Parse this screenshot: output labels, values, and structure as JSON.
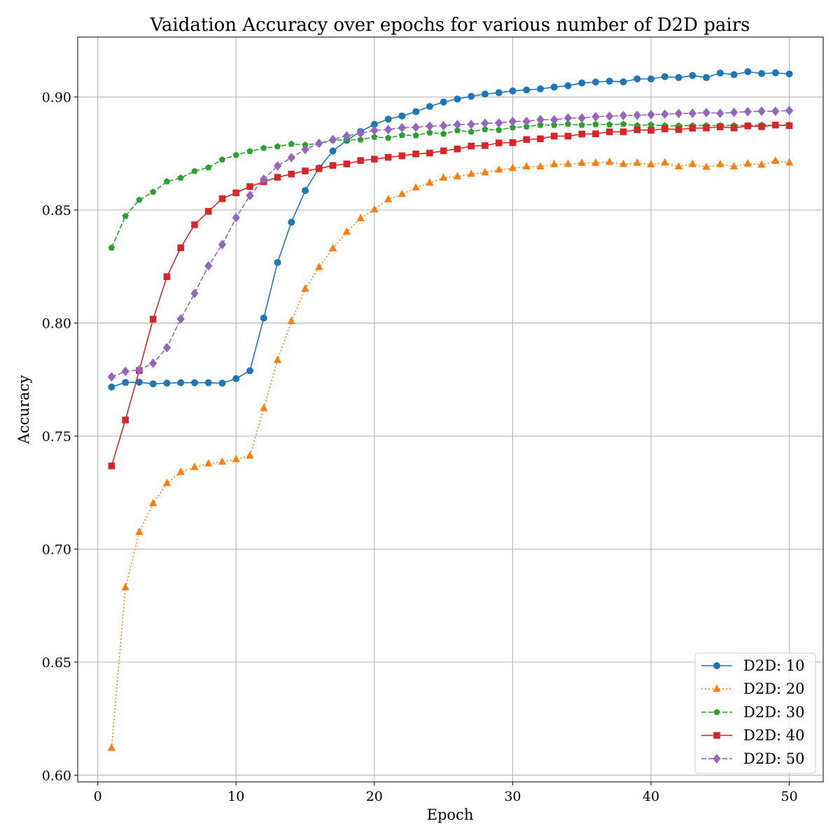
{
  "chart_data": {
    "type": "line",
    "title": "Vaidation Accuracy over epochs for various number of D2D pairs",
    "xlabel": "Epoch",
    "ylabel": "Accuracy",
    "xlim": [
      -1.45,
      52.45
    ],
    "ylim": [
      0.597,
      0.9265
    ],
    "xticks": [
      0,
      10,
      20,
      30,
      40,
      50
    ],
    "xtick_labels": [
      "0",
      "10",
      "20",
      "30",
      "40",
      "50"
    ],
    "yticks": [
      0.6,
      0.65,
      0.7,
      0.75,
      0.8,
      0.85,
      0.9
    ],
    "ytick_labels": [
      "0.60",
      "0.65",
      "0.70",
      "0.75",
      "0.80",
      "0.85",
      "0.90"
    ],
    "grid": true,
    "legend_position": "bottom-right",
    "x": [
      1,
      2,
      3,
      4,
      5,
      6,
      7,
      8,
      9,
      10,
      11,
      12,
      13,
      14,
      15,
      16,
      17,
      18,
      19,
      20,
      21,
      22,
      23,
      24,
      25,
      26,
      27,
      28,
      29,
      30,
      31,
      32,
      33,
      34,
      35,
      36,
      37,
      38,
      39,
      40,
      41,
      42,
      43,
      44,
      45,
      46,
      47,
      48,
      49,
      50
    ],
    "series": [
      {
        "name": "D2D: 10",
        "color": "#1f77b4",
        "marker": "circle",
        "linestyle": "solid",
        "values": [
          0.7717,
          0.7737,
          0.7738,
          0.7731,
          0.7734,
          0.7736,
          0.7736,
          0.7736,
          0.7734,
          0.7754,
          0.7789,
          0.8022,
          0.8268,
          0.8446,
          0.8586,
          0.8686,
          0.8761,
          0.8808,
          0.8847,
          0.8879,
          0.8902,
          0.8916,
          0.8935,
          0.8958,
          0.8978,
          0.8991,
          0.9003,
          0.9013,
          0.9019,
          0.9027,
          0.9031,
          0.9036,
          0.9044,
          0.905,
          0.9062,
          0.9066,
          0.907,
          0.9067,
          0.908,
          0.908,
          0.909,
          0.9086,
          0.9095,
          0.9086,
          0.9106,
          0.9099,
          0.9112,
          0.9104,
          0.9107,
          0.9102
        ]
      },
      {
        "name": "D2D: 20",
        "color": "#ff7f0e",
        "marker": "triangle",
        "linestyle": "dotted",
        "values": [
          0.612,
          0.683,
          0.7075,
          0.7202,
          0.7291,
          0.734,
          0.7362,
          0.7378,
          0.7386,
          0.7397,
          0.7413,
          0.7623,
          0.7836,
          0.8008,
          0.8151,
          0.8247,
          0.833,
          0.8403,
          0.8463,
          0.8502,
          0.8547,
          0.857,
          0.8599,
          0.862,
          0.8642,
          0.8648,
          0.8659,
          0.8666,
          0.8678,
          0.8685,
          0.8692,
          0.8692,
          0.8702,
          0.8703,
          0.8708,
          0.8708,
          0.8712,
          0.8703,
          0.8708,
          0.8701,
          0.8709,
          0.8692,
          0.8703,
          0.869,
          0.8702,
          0.8692,
          0.8705,
          0.87,
          0.8717,
          0.8709
        ]
      },
      {
        "name": "D2D: 30",
        "color": "#2ca02c",
        "marker": "pentagon",
        "linestyle": "dashed",
        "values": [
          0.8333,
          0.8473,
          0.8545,
          0.858,
          0.8626,
          0.8642,
          0.8672,
          0.8688,
          0.8723,
          0.8743,
          0.876,
          0.8774,
          0.8781,
          0.8792,
          0.8788,
          0.8795,
          0.8808,
          0.8811,
          0.8811,
          0.8823,
          0.8819,
          0.8831,
          0.883,
          0.8842,
          0.8837,
          0.8852,
          0.8846,
          0.8857,
          0.8854,
          0.8865,
          0.8869,
          0.8876,
          0.8876,
          0.888,
          0.8876,
          0.8879,
          0.8878,
          0.888,
          0.8874,
          0.8877,
          0.8873,
          0.8873,
          0.8873,
          0.8874,
          0.8874,
          0.8874,
          0.8874,
          0.8876,
          0.8874,
          0.8876
        ]
      },
      {
        "name": "D2D: 40",
        "color": "#d62728",
        "marker": "square",
        "linestyle": "solid",
        "values": [
          0.7368,
          0.7571,
          0.779,
          0.8017,
          0.8205,
          0.8333,
          0.8435,
          0.8494,
          0.855,
          0.8576,
          0.8604,
          0.8625,
          0.8645,
          0.8659,
          0.8673,
          0.8683,
          0.8697,
          0.8704,
          0.8719,
          0.8725,
          0.8733,
          0.874,
          0.8748,
          0.8752,
          0.8762,
          0.877,
          0.8783,
          0.8785,
          0.8797,
          0.8798,
          0.8812,
          0.8815,
          0.8827,
          0.8827,
          0.8836,
          0.8837,
          0.8846,
          0.8846,
          0.8855,
          0.8853,
          0.8859,
          0.8856,
          0.8862,
          0.8863,
          0.8868,
          0.8863,
          0.8872,
          0.8869,
          0.8876,
          0.8873
        ]
      },
      {
        "name": "D2D: 50",
        "color": "#9467bd",
        "marker": "diamond",
        "linestyle": "dashed",
        "values": [
          0.7762,
          0.7786,
          0.7793,
          0.7822,
          0.7891,
          0.8018,
          0.8131,
          0.8253,
          0.8347,
          0.8466,
          0.8564,
          0.8636,
          0.8695,
          0.8732,
          0.8768,
          0.8795,
          0.8812,
          0.8828,
          0.884,
          0.8852,
          0.8856,
          0.8864,
          0.8866,
          0.8871,
          0.8873,
          0.8878,
          0.8879,
          0.8884,
          0.8885,
          0.8892,
          0.8892,
          0.89,
          0.8899,
          0.8907,
          0.8907,
          0.8913,
          0.8915,
          0.8918,
          0.8919,
          0.8922,
          0.8924,
          0.8927,
          0.8928,
          0.8931,
          0.8928,
          0.8932,
          0.8935,
          0.8937,
          0.8937,
          0.894
        ]
      }
    ]
  }
}
